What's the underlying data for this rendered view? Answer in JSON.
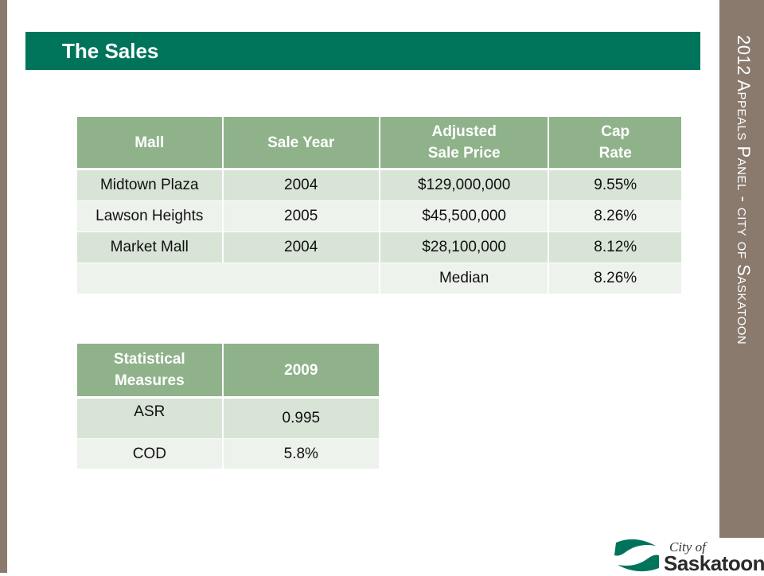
{
  "title": "The Sales",
  "side_title": "2012 Appeals Panel - city of Saskatoon",
  "sales_table": {
    "headers": [
      [
        "Mall"
      ],
      [
        "Sale Year"
      ],
      [
        "Adjusted",
        "Sale Price"
      ],
      [
        "Cap",
        "Rate"
      ]
    ],
    "rows": [
      [
        "Midtown Plaza",
        "2004",
        "$129,000,000",
        "9.55%"
      ],
      [
        "Lawson Heights",
        "2005",
        "$45,500,000",
        "8.26%"
      ],
      [
        "Market Mall",
        "2004",
        "$28,100,000",
        "8.12%"
      ]
    ],
    "median_label": "Median",
    "median_value": "8.26%"
  },
  "stats_table": {
    "headers": [
      [
        "Statistical",
        "Measures"
      ],
      [
        "2009"
      ]
    ],
    "rows": [
      [
        "ASR",
        "0.995"
      ],
      [
        "COD",
        "5.8%"
      ]
    ]
  },
  "logo": {
    "line1": "City of",
    "line2": "Saskatoon",
    "colors": {
      "mark": "#00745a",
      "text": "#2b2b2b"
    }
  },
  "colors": {
    "title_bar": "#00745a",
    "side_band": "#8a7a6e",
    "header_cell": "#8fb28b",
    "row_odd": "#d8e4d6",
    "row_even": "#edf2ec"
  }
}
